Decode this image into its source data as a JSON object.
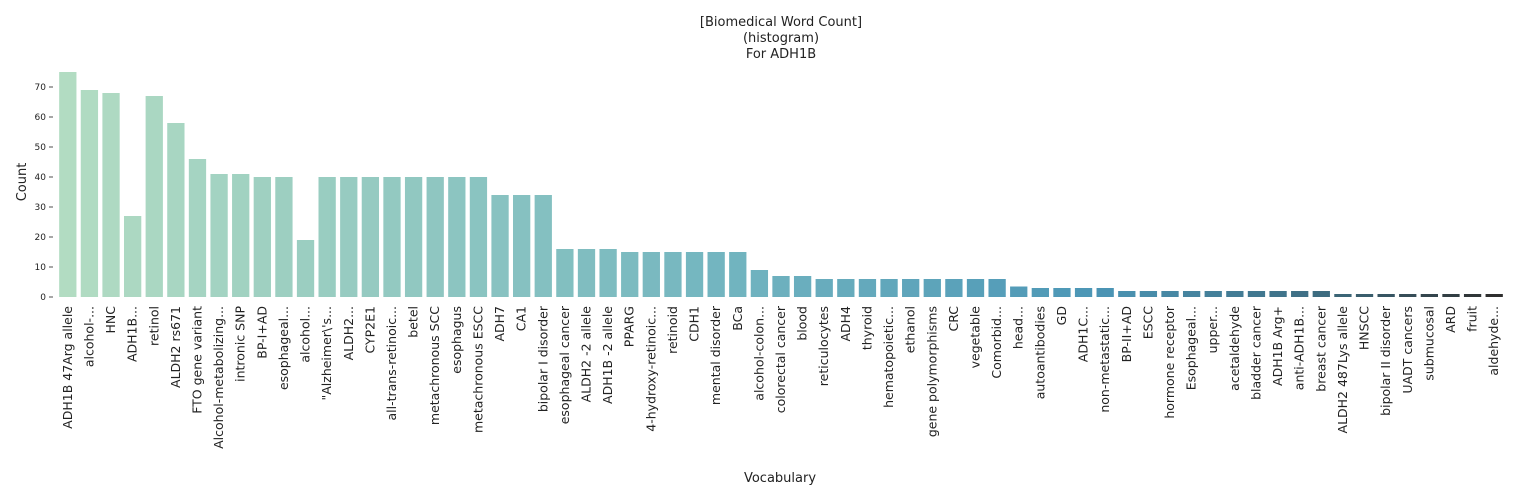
{
  "chart_data": {
    "type": "bar",
    "title": [
      "[Biomedical Word Count]",
      "(histogram)",
      "For ADH1B"
    ],
    "xlabel": "Vocabulary",
    "ylabel": "Count",
    "ylim": [
      0,
      77
    ],
    "yticks": [
      0,
      10,
      20,
      30,
      40,
      50,
      60,
      70
    ],
    "grid": false,
    "legend": "none",
    "color_start": "#b2dcc2",
    "color_end": "#2e2e2e",
    "categories": [
      "ADH1B 47Arg allele",
      "alcohol-...",
      "HNC",
      "ADH1B...",
      "retinol",
      "ALDH2 rs671",
      "FTO gene variant",
      "Alcohol-metabolizing...",
      "intronic SNP",
      "BP-I+AD",
      "esophageal...",
      "alcohol...",
      "\"Alzheimer\\'s...",
      "ALDH2...",
      "CYP2E1",
      "all-trans-retinoic...",
      "betel",
      "metachronous SCC",
      "esophagus",
      "metachronous ESCC",
      "ADH7",
      "CA1",
      "bipolar I disorder",
      "esophageal cancer",
      "ALDH2 -2 allele",
      "ADH1B -2 allele",
      "PPARG",
      "4-hydroxy-retinoic...",
      "retinoid",
      "CDH1",
      "mental disorder",
      "BCa",
      "alcohol-colon...",
      "colorectal cancer",
      "blood",
      "reticulocytes",
      "ADH4",
      "thyroid",
      "hematopoietic...",
      "ethanol",
      "gene polymorphisms",
      "CRC",
      "vegetable",
      "Comorbid...",
      "head...",
      "autoantibodies",
      "GD",
      "ADH1C...",
      "non-metastatic...",
      "BP-II+AD",
      "ESCC",
      "hormone receptor",
      "Esophageal...",
      "upper...",
      "acetaldehyde",
      "bladder cancer",
      "ADH1B Arg+",
      "anti-ADH1B...",
      "breast cancer",
      "ALDH2 487Lys allele",
      "HNSCC",
      "bipolar II disorder",
      "UADT cancers",
      "submucosal",
      "ARD",
      "fruit",
      "aldehyde..."
    ],
    "values": [
      75,
      69,
      68,
      27,
      67,
      58,
      46,
      41,
      41,
      40,
      40,
      19,
      40,
      40,
      40,
      40,
      40,
      40,
      40,
      40,
      34,
      34,
      34,
      16,
      16,
      16,
      15,
      15,
      15,
      15,
      15,
      15,
      9,
      7,
      7,
      6,
      6,
      6,
      6,
      6,
      6,
      6,
      6,
      6,
      3.5,
      3,
      3,
      3,
      3,
      2,
      2,
      2,
      2,
      2,
      2,
      2,
      2,
      2,
      2,
      1,
      1,
      1,
      1,
      1,
      1,
      1,
      1
    ]
  }
}
